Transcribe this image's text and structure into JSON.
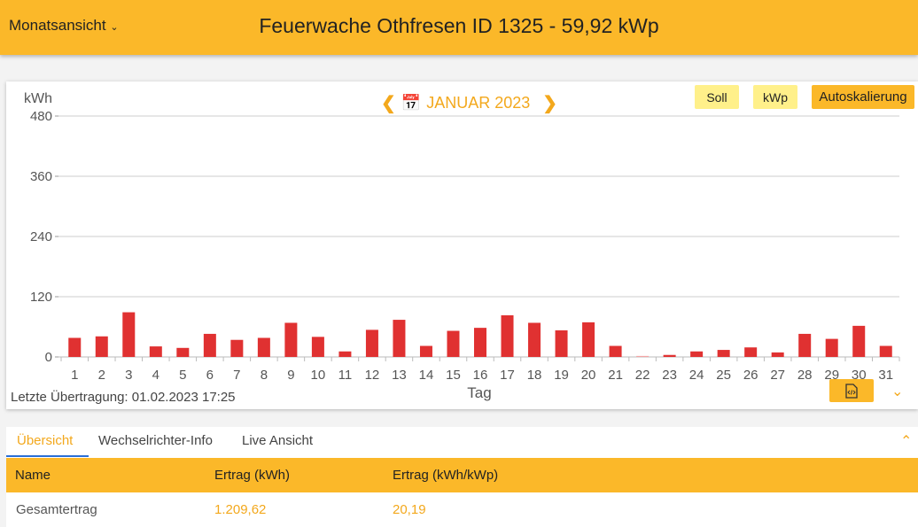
{
  "header": {
    "view_select": "Monatsansicht",
    "title": "Feuerwache Othfresen ID 1325 - 59,92 kWp"
  },
  "nav": {
    "period": "JANUAR 2023",
    "prev_icon": "chevron-left-icon",
    "next_icon": "chevron-right-icon",
    "calendar_icon": "calendar-icon"
  },
  "buttons": {
    "soll": "Soll",
    "kwp": "kWp",
    "autoscale": "Autoskalierung"
  },
  "status": "Letzte Übertragung: 01.02.2023 17:25",
  "colors": {
    "accent": "#FBB829",
    "bar": "#E03131",
    "nav": "#F3A81C"
  },
  "chart_data": {
    "type": "bar",
    "ylabel": "kWh",
    "xlabel": "Tag",
    "ylim": [
      0,
      480
    ],
    "yticks": [
      0,
      120,
      240,
      360,
      480
    ],
    "grid": true,
    "categories": [
      "1",
      "2",
      "3",
      "4",
      "5",
      "6",
      "7",
      "8",
      "9",
      "10",
      "11",
      "12",
      "13",
      "14",
      "15",
      "16",
      "17",
      "18",
      "19",
      "20",
      "21",
      "22",
      "23",
      "24",
      "25",
      "26",
      "27",
      "28",
      "29",
      "30",
      "31"
    ],
    "values": [
      38,
      41,
      89,
      21,
      18,
      46,
      34,
      38,
      68,
      40,
      11,
      54,
      74,
      22,
      52,
      58,
      83,
      68,
      53,
      69,
      22,
      2,
      4,
      11,
      14,
      19,
      9,
      46,
      36,
      62,
      22
    ]
  },
  "tabs": [
    {
      "label": "Übersicht",
      "active": true
    },
    {
      "label": "Wechselrichter-Info"
    },
    {
      "label": "Live Ansicht"
    }
  ],
  "table": {
    "headers": [
      "Name",
      "Ertrag (kWh)",
      "Ertrag (kWh/kWp)"
    ],
    "rows": [
      [
        "Gesamtertrag",
        "1.209,62",
        "20,19"
      ]
    ]
  }
}
